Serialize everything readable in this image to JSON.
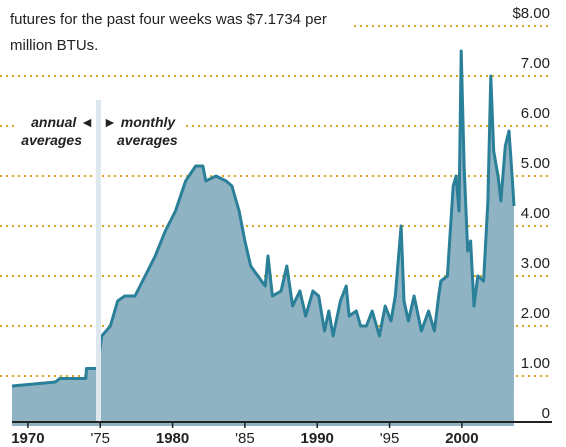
{
  "chart_data": {
    "type": "area",
    "subtitle_lines": [
      "futures for the past four weeks was $7.1734 per",
      "million BTUs."
    ],
    "annotation_left": [
      "annual ◄",
      "averages"
    ],
    "annotation_right": [
      "► monthly",
      "averages"
    ],
    "color": "#2a7f99",
    "fill": "#8fb3c2",
    "grid": true,
    "x": [
      1968.9,
      1970.8,
      1971.9,
      1972.2,
      1974.0,
      1974.05,
      1974.8,
      1975.1,
      1975.7,
      1976.2,
      1976.7,
      1977.4,
      1978.1,
      1978.8,
      1979.5,
      1980.2,
      1980.9,
      1981.6,
      1982.1,
      1982.3,
      1983.0,
      1983.7,
      1984.1,
      1984.6,
      1985.0,
      1985.4,
      1985.9,
      1986.4,
      1986.6,
      1986.9,
      1987.5,
      1987.9,
      1988.3,
      1988.8,
      1989.2,
      1989.7,
      1990.1,
      1990.5,
      1990.8,
      1991.1,
      1991.6,
      1992.0,
      1992.2,
      1992.7,
      1993.0,
      1993.4,
      1993.8,
      1994.3,
      1994.7,
      1995.1,
      1995.4,
      1995.8,
      1996.0,
      1996.3,
      1996.7,
      1997.2,
      1997.7,
      1998.1,
      1998.4,
      1998.55,
      1999.0,
      1999.4,
      1999.6,
      1999.8,
      1999.95,
      2000.15,
      2000.4,
      2000.6,
      2000.84,
      2001.1,
      2001.5,
      2001.8,
      2002.0,
      2002.2,
      2002.5,
      2002.7,
      2003.0,
      2003.26,
      2003.47,
      2003.6
    ],
    "values": [
      0.8,
      0.85,
      0.88,
      0.95,
      0.95,
      1.15,
      1.15,
      1.8,
      2.0,
      2.5,
      2.6,
      2.6,
      3.0,
      3.4,
      3.9,
      4.3,
      4.9,
      5.2,
      5.2,
      4.9,
      5.0,
      4.9,
      4.8,
      4.3,
      3.7,
      3.2,
      3.0,
      2.8,
      3.4,
      2.6,
      2.7,
      3.2,
      2.4,
      2.7,
      2.2,
      2.7,
      2.6,
      1.9,
      2.3,
      1.8,
      2.5,
      2.8,
      2.2,
      2.3,
      2.0,
      2.0,
      2.3,
      1.8,
      2.4,
      2.1,
      2.6,
      4.0,
      2.5,
      2.1,
      2.6,
      1.9,
      2.3,
      1.9,
      2.6,
      2.9,
      3.0,
      4.8,
      5.0,
      4.3,
      7.5,
      5.2,
      3.5,
      3.7,
      2.4,
      3.0,
      2.9,
      4.5,
      7.0,
      5.5,
      5.0,
      4.5,
      5.6,
      5.9,
      5.0,
      4.4
    ],
    "xlim": [
      1968.9,
      2005.4
    ],
    "xticks": [
      1970,
      {
        "value": 1975,
        "label": "'75"
      },
      1980,
      {
        "value": 1985,
        "label": "'85"
      },
      1990,
      {
        "value": 1995,
        "label": "'95"
      },
      2000
    ],
    "ylim": [
      0,
      8
    ],
    "yticks": [
      0,
      {
        "value": 1,
        "label": "1.00"
      },
      {
        "value": 2,
        "label": "2.00"
      },
      {
        "value": 3,
        "label": "3.00"
      },
      {
        "value": 4,
        "label": "4.00"
      },
      {
        "value": 5,
        "label": "5.00"
      },
      {
        "value": 6,
        "label": "6.00"
      },
      {
        "value": 7,
        "label": "7.00"
      },
      {
        "value": 8,
        "label": "$8.00"
      }
    ]
  }
}
